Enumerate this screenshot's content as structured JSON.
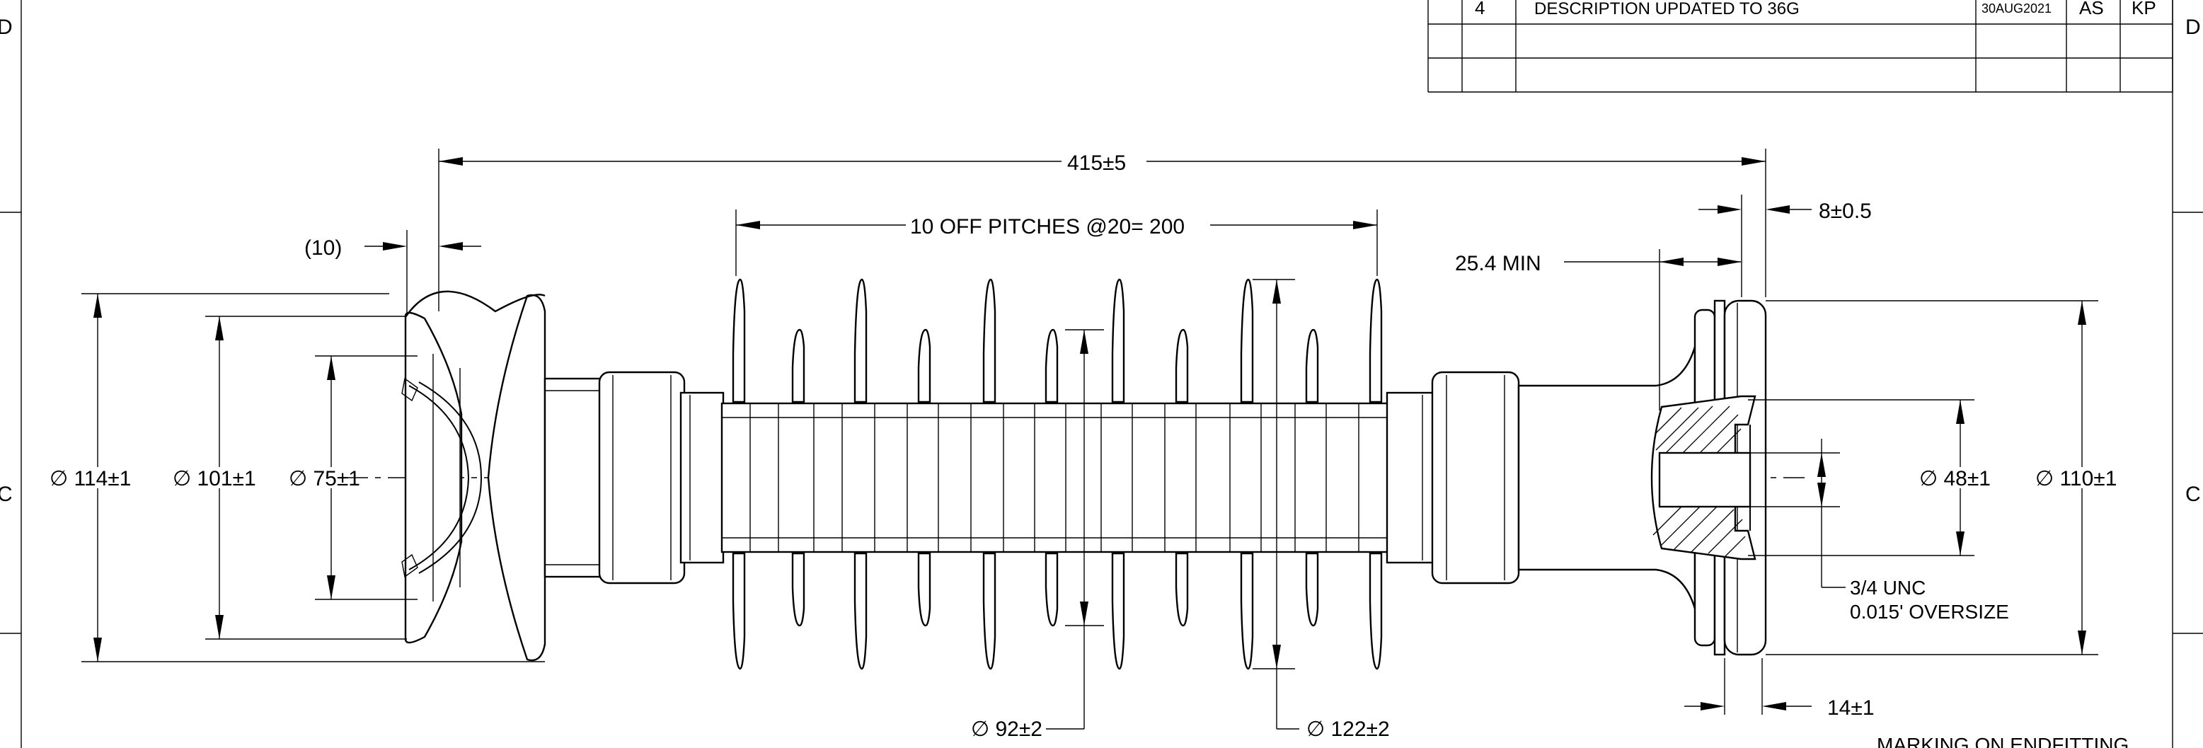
{
  "revision_table": {
    "rows": [
      {
        "rev": "4",
        "description": "DESCRIPTION UPDATED TO 36G",
        "date": "30AUG2021",
        "by": "AS",
        "checked": "KP"
      },
      {
        "rev": "",
        "description": "",
        "date": "",
        "by": "",
        "checked": ""
      }
    ]
  },
  "zone_markers": {
    "left": [
      "D",
      "C"
    ],
    "right": [
      "D",
      "C"
    ]
  },
  "dimensions": {
    "overall_length": "415±5",
    "pitches": "10 OFF PITCHES @20= 200",
    "end_gap": "(10)",
    "flange_thickness": "8±0.5",
    "thread_depth": "25.4 MIN",
    "base_thickness": "14±1",
    "dia_114": "∅ 114±1",
    "dia_101": "∅ 101±1",
    "dia_75": "∅ 75±1",
    "dia_48": "∅ 48±1",
    "dia_110": "∅ 110±1",
    "dia_92": "∅ 92±2",
    "dia_122": "∅ 122±2"
  },
  "notes": {
    "thread_line1": "3/4 UNC",
    "thread_line2": "0.015' OVERSIZE",
    "marking": "MARKING ON ENDFITTING"
  }
}
